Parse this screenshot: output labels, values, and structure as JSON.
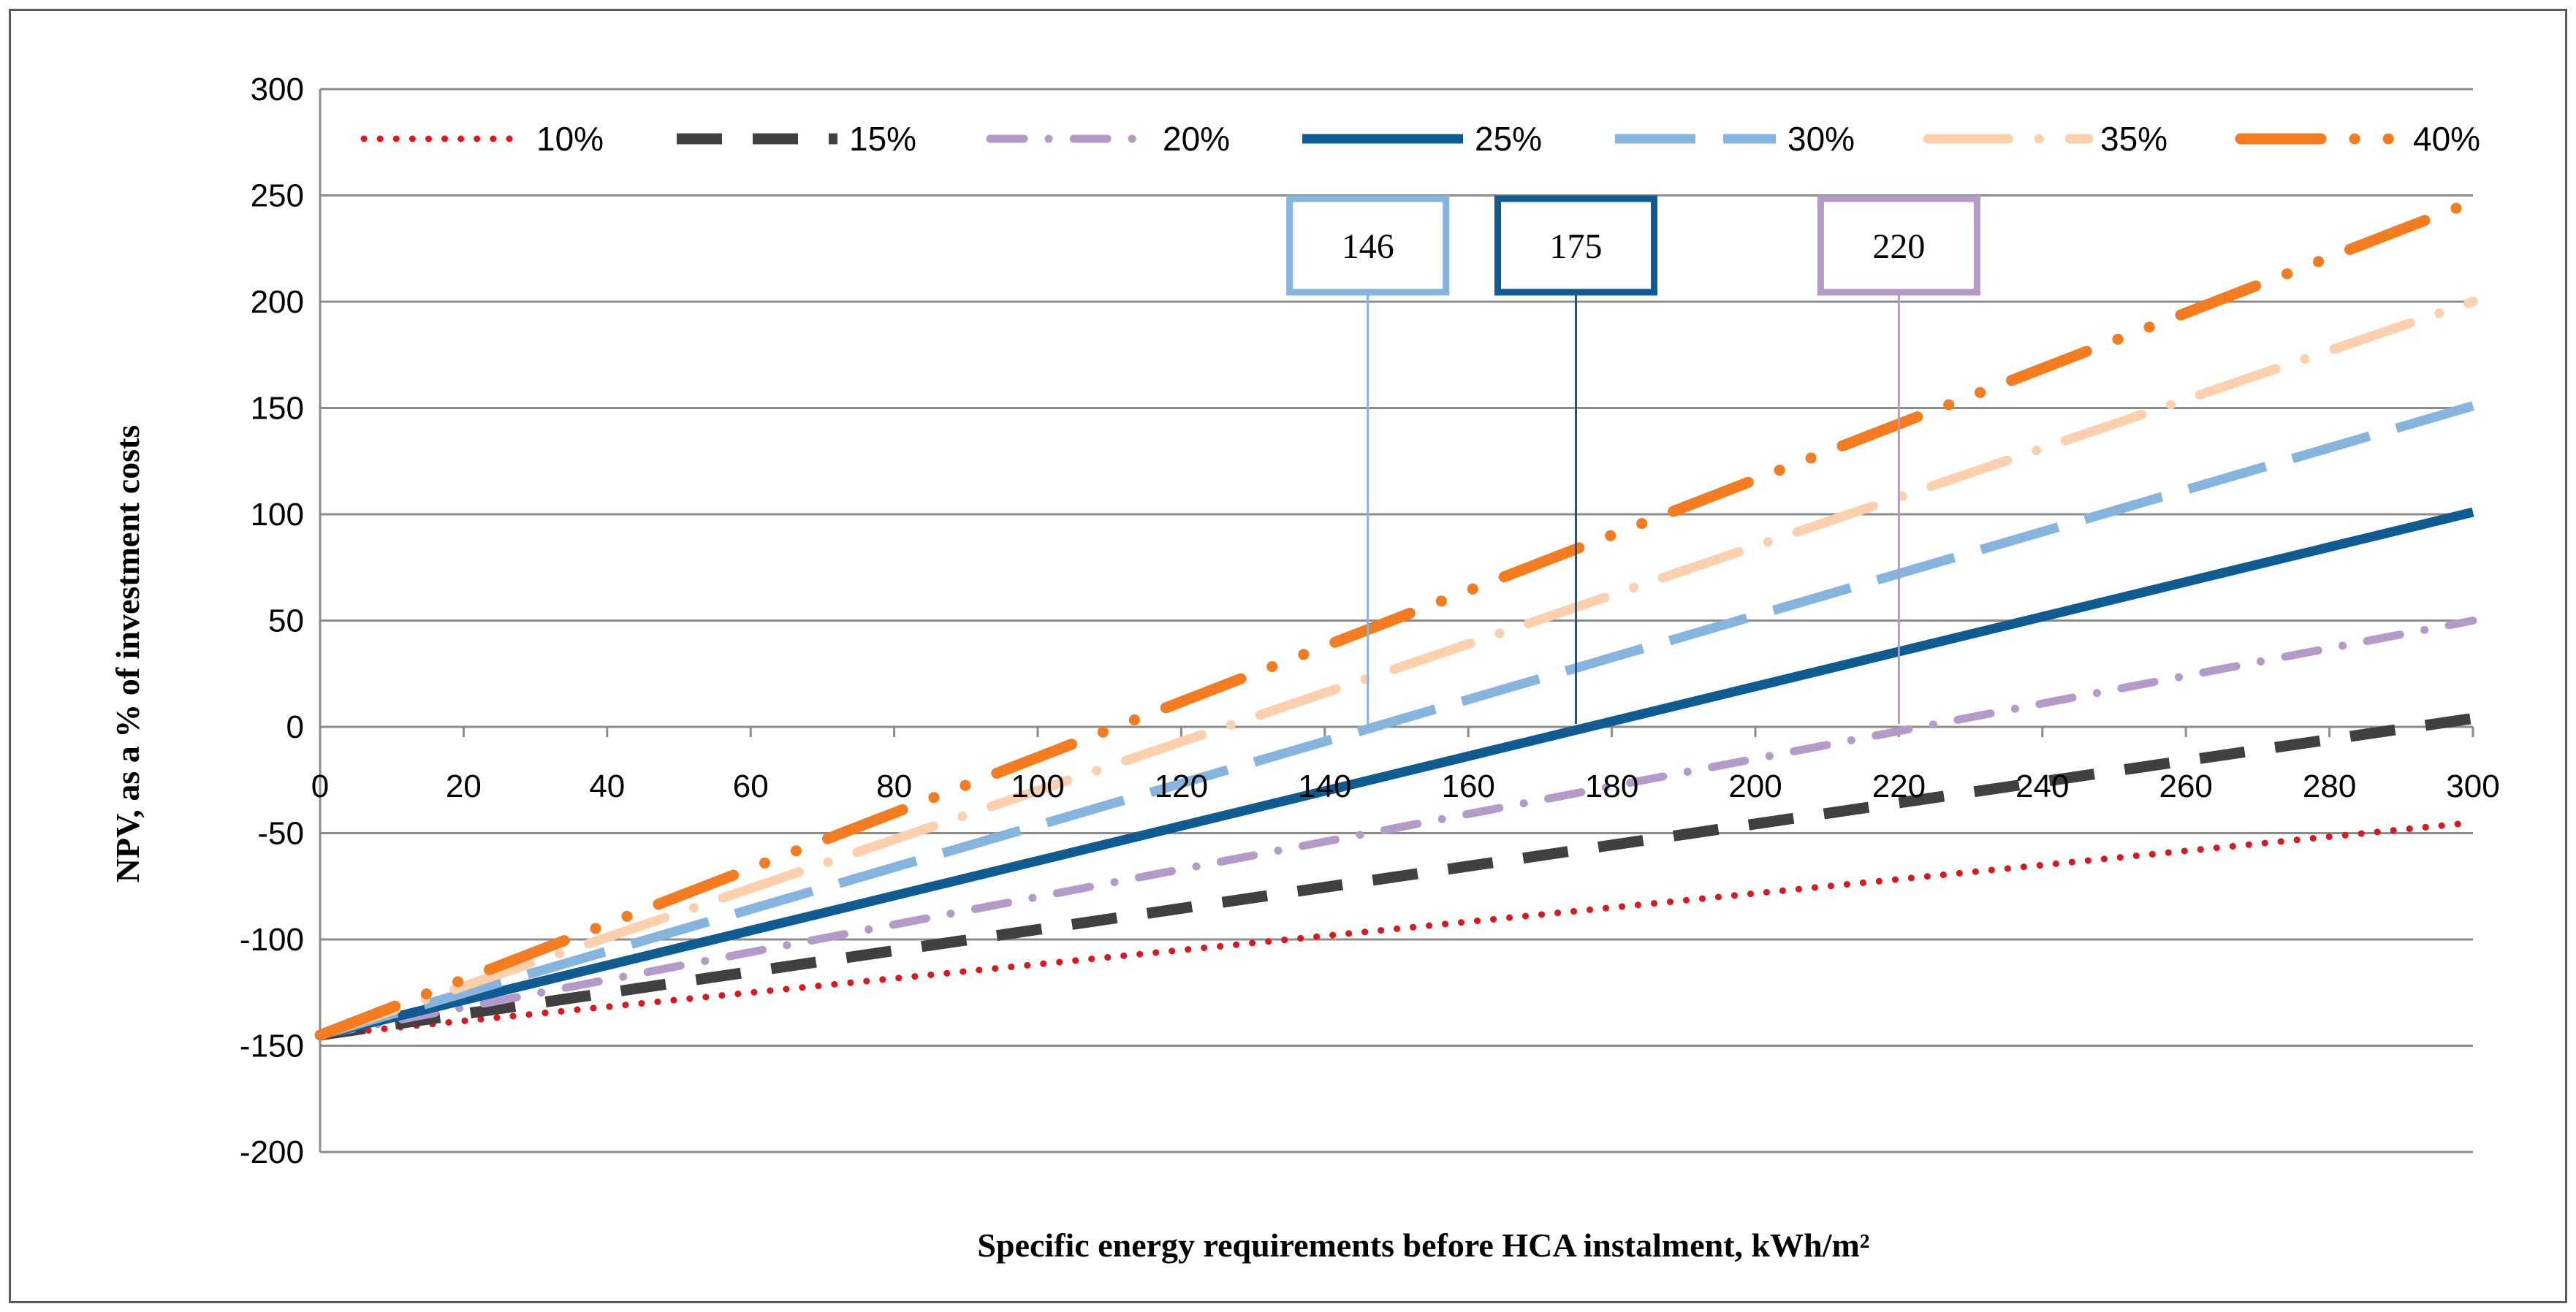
{
  "chart_data": {
    "type": "line",
    "title": "",
    "xlabel": "Specific energy requirements before HCA instalment, kWh/m²",
    "ylabel": "NPV, as a % of investment costs",
    "xlim": [
      0,
      300
    ],
    "ylim": [
      -200,
      300
    ],
    "x_ticks": [
      "0",
      "20",
      "40",
      "60",
      "80",
      "100",
      "120",
      "140",
      "160",
      "180",
      "200",
      "220",
      "240",
      "260",
      "280",
      "300"
    ],
    "y_ticks": [
      "-200",
      "-150",
      "-100",
      "-50",
      "0",
      "50",
      "100",
      "150",
      "200",
      "250",
      "300"
    ],
    "grid": "horizontal",
    "legend_position": "top",
    "x": [
      0,
      300
    ],
    "series": [
      {
        "name": "10%",
        "values": [
          -145,
          -45
        ],
        "color": "#e0161c",
        "style": "dotted"
      },
      {
        "name": "15%",
        "values": [
          -145,
          4
        ],
        "color": "#404040",
        "style": "dashed"
      },
      {
        "name": "20%",
        "values": [
          -145,
          50
        ],
        "color": "#b49ac8",
        "style": "dash-dot"
      },
      {
        "name": "25%",
        "values": [
          -145,
          101
        ],
        "color": "#0e5c92",
        "style": "solid"
      },
      {
        "name": "30%",
        "values": [
          -145,
          151
        ],
        "color": "#85b4de",
        "style": "long-dash"
      },
      {
        "name": "35%",
        "values": [
          -145,
          200
        ],
        "color": "#fcd0ac",
        "style": "long-dash-dot"
      },
      {
        "name": "40%",
        "values": [
          -145,
          247
        ],
        "color": "#f47b1e",
        "style": "long-dash-dot-dot"
      }
    ],
    "annotations": [
      {
        "label": "146",
        "x": 146,
        "color": "#85b4de"
      },
      {
        "label": "175",
        "x": 175,
        "color": "#0e5c92"
      },
      {
        "label": "220",
        "x": 220,
        "color": "#b49ac8"
      }
    ]
  }
}
